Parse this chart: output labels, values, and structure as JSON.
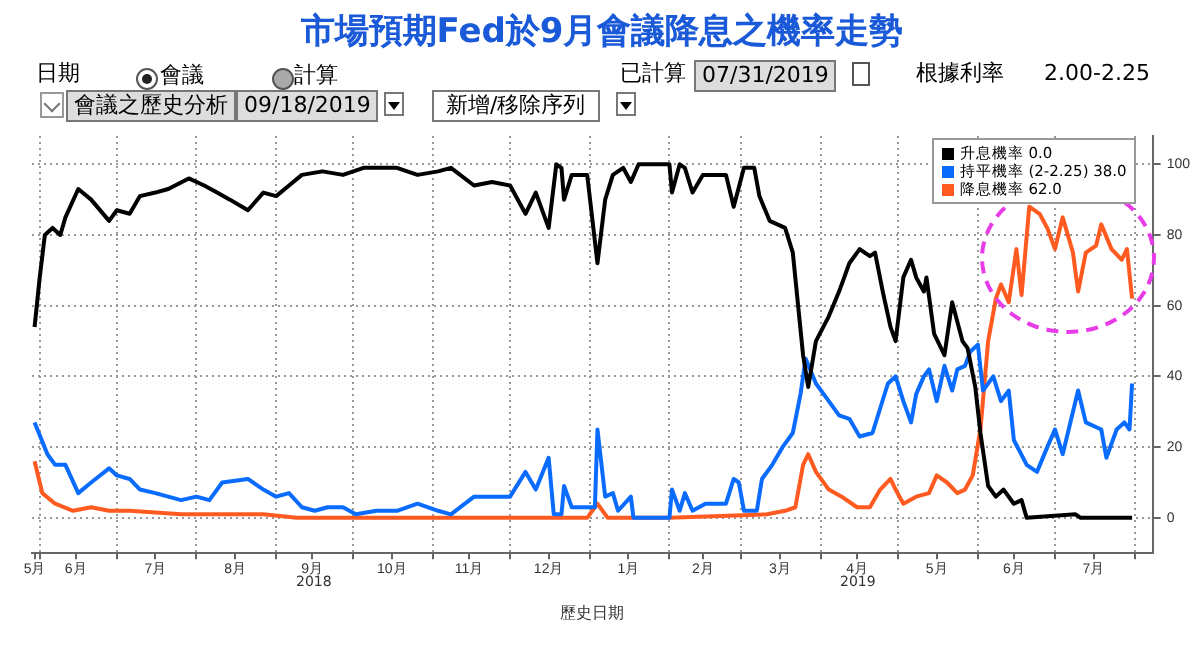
{
  "chart_data": {
    "type": "line",
    "title": "市場預期Fed於9月會議降息之機率走勢",
    "xlabel": "歷史日期",
    "annotations": [
      "日期",
      "會議",
      "計算",
      "已計算",
      "07/31/2019",
      "根據利率",
      "2.00-2.25",
      "會議之歷史分析",
      "09/18/2019",
      "新增/移除序列",
      "2018",
      "2019"
    ],
    "xlim": [
      "2018-05-29",
      "2019-08-08"
    ],
    "xticks": [
      {
        "value": "2018-05-30",
        "label": "5月"
      },
      {
        "value": "2018-06-01",
        "label": null
      },
      {
        "value": "2018-06-15",
        "label": "6月"
      },
      {
        "value": "2018-07-01",
        "label": null
      },
      {
        "value": "2018-07-16",
        "label": "7月"
      },
      {
        "value": "2018-08-01",
        "label": null
      },
      {
        "value": "2018-08-16",
        "label": "8月"
      },
      {
        "value": "2018-09-01",
        "label": null
      },
      {
        "value": "2018-09-15",
        "label": "9月"
      },
      {
        "value": "2018-10-01",
        "label": null
      },
      {
        "value": "2018-10-16",
        "label": "10月"
      },
      {
        "value": "2018-11-01",
        "label": null
      },
      {
        "value": "2018-11-15",
        "label": "11月"
      },
      {
        "value": "2018-12-01",
        "label": null
      },
      {
        "value": "2018-12-16",
        "label": "12月"
      },
      {
        "value": "2019-01-01",
        "label": null
      },
      {
        "value": "2019-01-16",
        "label": "1月"
      },
      {
        "value": "2019-02-01",
        "label": null
      },
      {
        "value": "2019-02-14",
        "label": "2月"
      },
      {
        "value": "2019-03-01",
        "label": null
      },
      {
        "value": "2019-03-16",
        "label": "3月"
      },
      {
        "value": "2019-04-01",
        "label": null
      },
      {
        "value": "2019-04-15",
        "label": "4月"
      },
      {
        "value": "2019-05-01",
        "label": null
      },
      {
        "value": "2019-05-16",
        "label": "5月"
      },
      {
        "value": "2019-06-01",
        "label": null
      },
      {
        "value": "2019-06-15",
        "label": "6月"
      },
      {
        "value": "2019-07-01",
        "label": null
      },
      {
        "value": "2019-07-16",
        "label": "7月"
      },
      {
        "value": "2019-08-01",
        "label": null
      }
    ],
    "ylim": [
      -10,
      108
    ],
    "yticks": [
      0,
      20,
      40,
      60,
      80,
      100
    ],
    "grid": true,
    "legend": "top right",
    "series": [
      {
        "name": "升息機率 0.0",
        "color": "#000000",
        "x": [
          "2018-05-30",
          "2018-06-01",
          "2018-06-03",
          "2018-06-06",
          "2018-06-09",
          "2018-06-11",
          "2018-06-16",
          "2018-06-21",
          "2018-06-28",
          "2018-07-01",
          "2018-07-06",
          "2018-07-10",
          "2018-07-16",
          "2018-07-21",
          "2018-07-29",
          "2018-08-04",
          "2018-08-09",
          "2018-08-14",
          "2018-08-21",
          "2018-08-27",
          "2018-09-01",
          "2018-09-06",
          "2018-09-11",
          "2018-09-19",
          "2018-09-27",
          "2018-10-05",
          "2018-10-18",
          "2018-10-26",
          "2018-11-03",
          "2018-11-08",
          "2018-11-17",
          "2018-11-24",
          "2018-12-01",
          "2018-12-07",
          "2018-12-11",
          "2018-12-16",
          "2018-12-19",
          "2018-12-21",
          "2018-12-22",
          "2018-12-25",
          "2018-12-31",
          "2019-01-04",
          "2019-01-07",
          "2019-01-10",
          "2019-01-14",
          "2019-01-17",
          "2019-01-20",
          "2019-02-01",
          "2019-02-02",
          "2019-02-05",
          "2019-02-07",
          "2019-02-10",
          "2019-02-14",
          "2019-02-23",
          "2019-02-26",
          "2019-03-02",
          "2019-03-06",
          "2019-03-08",
          "2019-03-12",
          "2019-03-18",
          "2019-03-21",
          "2019-03-25",
          "2019-03-27",
          "2019-03-30",
          "2019-04-04",
          "2019-04-08",
          "2019-04-12",
          "2019-04-16",
          "2019-04-20",
          "2019-04-22",
          "2019-04-25",
          "2019-04-28",
          "2019-04-30",
          "2019-05-03",
          "2019-05-06",
          "2019-05-08",
          "2019-05-11",
          "2019-05-12",
          "2019-05-15",
          "2019-05-19",
          "2019-05-22",
          "2019-05-26",
          "2019-05-28",
          "2019-05-31",
          "2019-06-02",
          "2019-06-05",
          "2019-06-08",
          "2019-06-11",
          "2019-06-15",
          "2019-06-18",
          "2019-06-20",
          "2019-07-09",
          "2019-07-11",
          "2019-07-31"
        ],
        "values": [
          54,
          68,
          80,
          82,
          80,
          85,
          93,
          90,
          84,
          87,
          86,
          91,
          92,
          93,
          96,
          94,
          92,
          90,
          87,
          92,
          91,
          94,
          97,
          98,
          97,
          99,
          99,
          97,
          98,
          99,
          94,
          95,
          94,
          86,
          92,
          82,
          100,
          99,
          90,
          97,
          97,
          72,
          90,
          97,
          99,
          95,
          100,
          100,
          92,
          100,
          99,
          92,
          97,
          97,
          88,
          99,
          99,
          91,
          84,
          82,
          75,
          46,
          37,
          50,
          57,
          64,
          72,
          76,
          74,
          75,
          64,
          54,
          50,
          68,
          73,
          68,
          64,
          68,
          52,
          46,
          61,
          50,
          48,
          37,
          24,
          9,
          6,
          8,
          4,
          5,
          0,
          1,
          0,
          0
        ]
      },
      {
        "name": "持平機率 (2-2.25) 38.0",
        "color": "#0a6cff",
        "x": [
          "2018-05-30",
          "2018-06-04",
          "2018-06-07",
          "2018-06-11",
          "2018-06-16",
          "2018-06-21",
          "2018-06-28",
          "2018-07-01",
          "2018-07-06",
          "2018-07-10",
          "2018-07-16",
          "2018-07-21",
          "2018-07-26",
          "2018-08-01",
          "2018-08-06",
          "2018-08-11",
          "2018-08-21",
          "2018-08-27",
          "2018-09-01",
          "2018-09-06",
          "2018-09-11",
          "2018-09-16",
          "2018-09-21",
          "2018-09-27",
          "2018-10-02",
          "2018-10-10",
          "2018-10-18",
          "2018-10-26",
          "2018-11-03",
          "2018-11-08",
          "2018-11-17",
          "2018-11-24",
          "2018-12-01",
          "2018-12-07",
          "2018-12-11",
          "2018-12-16",
          "2018-12-18",
          "2018-12-21",
          "2018-12-22",
          "2018-12-25",
          "2018-12-31",
          "2019-01-03",
          "2019-01-04",
          "2019-01-07",
          "2019-01-10",
          "2019-01-12",
          "2019-01-17",
          "2019-01-18",
          "2019-02-01",
          "2019-02-02",
          "2019-02-05",
          "2019-02-07",
          "2019-02-10",
          "2019-02-15",
          "2019-02-23",
          "2019-02-26",
          "2019-02-28",
          "2019-03-02",
          "2019-03-07",
          "2019-03-09",
          "2019-03-13",
          "2019-03-17",
          "2019-03-21",
          "2019-03-24",
          "2019-03-26",
          "2019-03-30",
          "2019-04-04",
          "2019-04-08",
          "2019-04-12",
          "2019-04-16",
          "2019-04-21",
          "2019-04-24",
          "2019-04-27",
          "2019-04-30",
          "2019-05-03",
          "2019-05-06",
          "2019-05-08",
          "2019-05-11",
          "2019-05-13",
          "2019-05-16",
          "2019-05-19",
          "2019-05-22",
          "2019-05-24",
          "2019-05-27",
          "2019-05-29",
          "2019-06-01",
          "2019-06-03",
          "2019-06-07",
          "2019-06-10",
          "2019-06-13",
          "2019-06-15",
          "2019-06-20",
          "2019-06-24",
          "2019-06-28",
          "2019-07-01",
          "2019-07-04",
          "2019-07-10",
          "2019-07-13",
          "2019-07-19",
          "2019-07-21",
          "2019-07-25",
          "2019-07-28",
          "2019-07-30",
          "2019-07-31"
        ],
        "values": [
          27,
          18,
          15,
          15,
          7,
          10,
          14,
          12,
          11,
          8,
          7,
          6,
          5,
          6,
          5,
          10,
          11,
          8,
          6,
          7,
          3,
          2,
          3,
          3,
          1,
          2,
          2,
          4,
          2,
          1,
          6,
          6,
          6,
          13,
          8,
          17,
          1,
          1,
          9,
          3,
          3,
          3,
          25,
          6,
          7,
          2,
          6,
          0,
          0,
          8,
          2,
          7,
          2,
          4,
          4,
          11,
          10,
          2,
          2,
          11,
          15,
          20,
          24,
          35,
          45,
          38,
          33,
          29,
          28,
          23,
          24,
          31,
          38,
          40,
          33,
          27,
          35,
          40,
          42,
          33,
          43,
          36,
          42,
          43,
          47,
          49,
          36,
          40,
          33,
          36,
          22,
          15,
          13,
          20,
          25,
          18,
          36,
          27,
          25,
          17,
          25,
          27,
          25,
          38
        ]
      },
      {
        "name": "降息機率 62.0",
        "color": "#ff5a1f",
        "x": [
          "2018-05-30",
          "2018-06-02",
          "2018-06-07",
          "2018-06-14",
          "2018-06-21",
          "2018-06-28",
          "2018-07-06",
          "2018-07-26",
          "2018-08-27",
          "2018-09-09",
          "2018-12-19",
          "2018-12-31",
          "2019-01-04",
          "2019-01-08",
          "2019-02-01",
          "2019-03-11",
          "2019-03-18",
          "2019-03-22",
          "2019-03-25",
          "2019-03-27",
          "2019-03-30",
          "2019-04-04",
          "2019-04-09",
          "2019-04-15",
          "2019-04-20",
          "2019-04-24",
          "2019-04-28",
          "2019-04-30",
          "2019-05-03",
          "2019-05-08",
          "2019-05-13",
          "2019-05-16",
          "2019-05-20",
          "2019-05-24",
          "2019-05-27",
          "2019-05-30",
          "2019-06-02",
          "2019-06-05",
          "2019-06-08",
          "2019-06-10",
          "2019-06-13",
          "2019-06-16",
          "2019-06-18",
          "2019-06-21",
          "2019-06-25",
          "2019-06-28",
          "2019-07-01",
          "2019-07-04",
          "2019-07-08",
          "2019-07-10",
          "2019-07-13",
          "2019-07-17",
          "2019-07-19",
          "2019-07-23",
          "2019-07-27",
          "2019-07-29",
          "2019-07-31"
        ],
        "values": [
          16,
          7,
          4,
          2,
          3,
          2,
          2,
          1,
          1,
          0,
          0,
          0,
          4,
          0,
          0,
          1,
          2,
          3,
          15,
          18,
          13,
          8,
          6,
          3,
          3,
          8,
          11,
          8,
          4,
          6,
          7,
          12,
          10,
          7,
          8,
          12,
          25,
          50,
          62,
          66,
          61,
          76,
          63,
          88,
          86,
          82,
          76,
          85,
          75,
          64,
          75,
          77,
          83,
          76,
          73,
          76,
          62
        ]
      }
    ]
  }
}
